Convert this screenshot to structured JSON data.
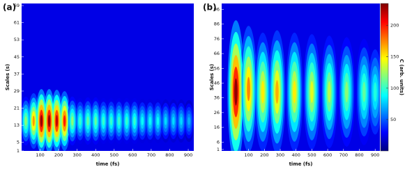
{
  "chart_data": [
    {
      "type": "heatmap",
      "panel_label": "(a)",
      "xlabel": "time (fs)",
      "ylabel": "Scales (s)",
      "colormap": "jet",
      "clim": [
        0,
        235
      ],
      "xlim": [
        0,
        930
      ],
      "ylim": [
        1,
        70
      ],
      "xticks": [
        100,
        200,
        300,
        400,
        500,
        600,
        700,
        800,
        900
      ],
      "yticks": [
        1,
        5,
        13,
        21,
        29,
        37,
        45,
        53,
        61,
        69
      ],
      "x": [
        23,
        65,
        107,
        149,
        190,
        232,
        274,
        316,
        358,
        400,
        442,
        484,
        526,
        568,
        610,
        652,
        694,
        736,
        778,
        820,
        862,
        904
      ],
      "y": [
        15,
        15,
        15,
        15,
        15,
        15,
        15,
        15,
        15,
        15,
        15,
        15,
        15,
        15,
        15,
        15,
        15,
        15,
        15,
        15,
        15,
        15
      ],
      "values": [
        120,
        170,
        230,
        230,
        220,
        200,
        120,
        100,
        110,
        110,
        100,
        100,
        100,
        100,
        100,
        90,
        90,
        90,
        80,
        80,
        80,
        70
      ]
    },
    {
      "type": "heatmap",
      "panel_label": "(b)",
      "xlabel": "time (fs)",
      "ylabel": "Scales (s)",
      "colormap": "jet",
      "clim": [
        0,
        235
      ],
      "colorbar_label": "C (arb. units)",
      "cticks": [
        50,
        100,
        150,
        200
      ],
      "xlim": [
        -70,
        930
      ],
      "ylim": [
        0,
        100
      ],
      "xticks": [
        100,
        200,
        300,
        400,
        500,
        600,
        700,
        800,
        900
      ],
      "yticks": [
        1,
        6,
        16,
        26,
        36,
        46,
        56,
        66,
        76,
        86,
        96
      ],
      "x": [
        20,
        100,
        190,
        280,
        390,
        500,
        610,
        720,
        830,
        900
      ],
      "y": [
        40,
        42,
        40,
        40,
        40,
        40,
        40,
        40,
        40,
        40
      ],
      "values": [
        230,
        175,
        150,
        165,
        150,
        140,
        130,
        120,
        110,
        95
      ]
    }
  ]
}
